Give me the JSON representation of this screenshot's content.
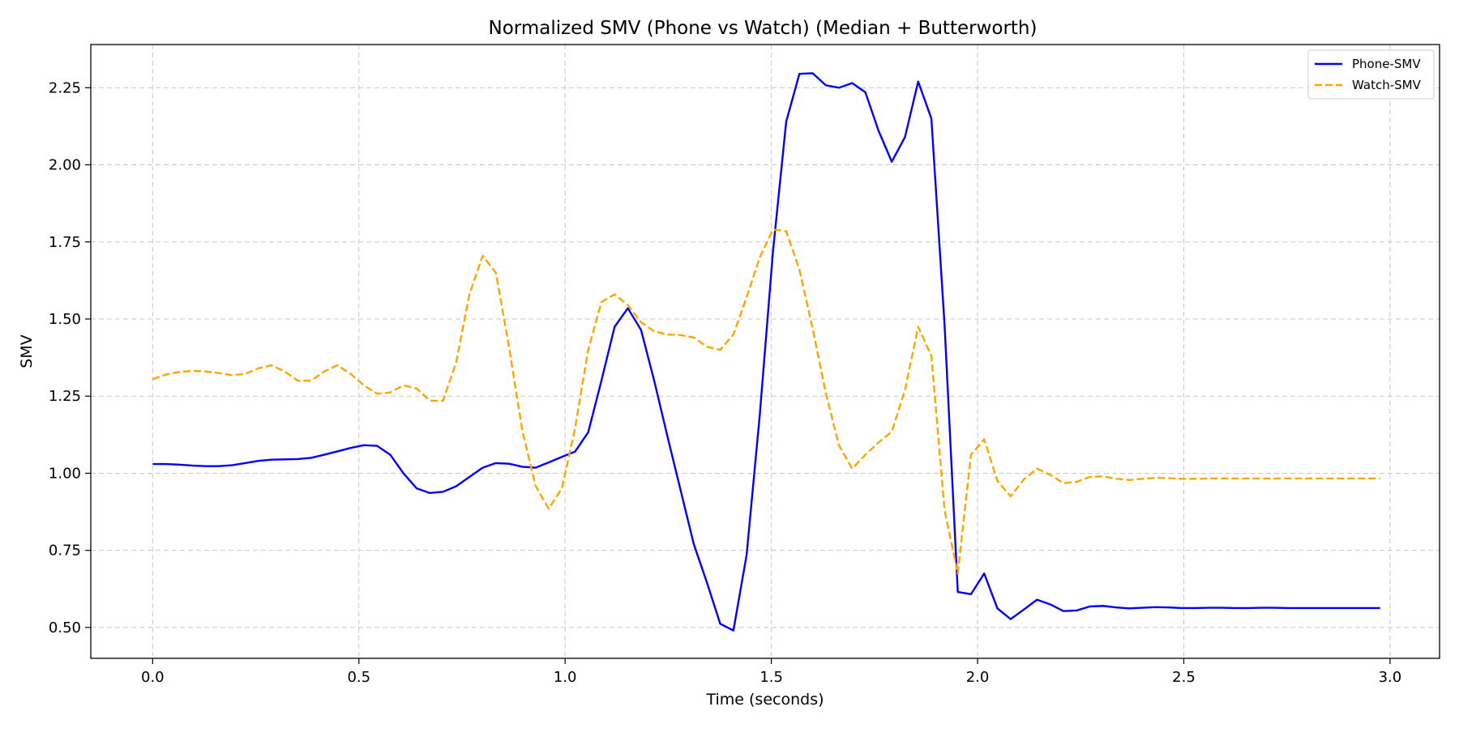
{
  "chart_data": {
    "type": "line",
    "title": "Normalized SMV (Phone vs Watch) (Median + Butterworth)",
    "xlabel": "Time (seconds)",
    "ylabel": "SMV",
    "xlim": [
      -0.15,
      3.12
    ],
    "ylim": [
      0.4,
      2.39
    ],
    "xticks": [
      0.0,
      0.5,
      1.0,
      1.5,
      2.0,
      2.5,
      3.0
    ],
    "xtick_labels": [
      "0.0",
      "0.5",
      "1.0",
      "1.5",
      "2.0",
      "2.5",
      "3.0"
    ],
    "yticks": [
      0.5,
      0.75,
      1.0,
      1.25,
      1.5,
      1.75,
      2.0,
      2.25
    ],
    "ytick_labels": [
      "0.50",
      "0.75",
      "1.00",
      "1.25",
      "1.50",
      "1.75",
      "2.00",
      "2.25"
    ],
    "grid": true,
    "legend_position": "top-right",
    "series": [
      {
        "name": "Phone-SMV",
        "color": "#0000ff",
        "style": "solid",
        "x": [
          0.0,
          0.032,
          0.064,
          0.096,
          0.128,
          0.16,
          0.192,
          0.224,
          0.256,
          0.288,
          0.32,
          0.352,
          0.384,
          0.416,
          0.448,
          0.48,
          0.512,
          0.544,
          0.576,
          0.608,
          0.64,
          0.672,
          0.704,
          0.736,
          0.768,
          0.8,
          0.832,
          0.864,
          0.896,
          0.928,
          0.96,
          0.992,
          1.024,
          1.056,
          1.088,
          1.12,
          1.152,
          1.184,
          1.216,
          1.248,
          1.28,
          1.312,
          1.344,
          1.376,
          1.408,
          1.44,
          1.472,
          1.504,
          1.536,
          1.568,
          1.6,
          1.632,
          1.664,
          1.696,
          1.728,
          1.76,
          1.792,
          1.824,
          1.856,
          1.888,
          1.92,
          1.952,
          1.984,
          2.016,
          2.048,
          2.08,
          2.112,
          2.144,
          2.176,
          2.208,
          2.24,
          2.272,
          2.304,
          2.336,
          2.368,
          2.4,
          2.432,
          2.464,
          2.496,
          2.528,
          2.56,
          2.592,
          2.624,
          2.656,
          2.688,
          2.72,
          2.752,
          2.784,
          2.816,
          2.848,
          2.88,
          2.912,
          2.944,
          2.976
        ],
        "y": [
          1.03,
          1.03,
          1.028,
          1.025,
          1.023,
          1.023,
          1.026,
          1.033,
          1.04,
          1.044,
          1.045,
          1.046,
          1.05,
          1.06,
          1.071,
          1.082,
          1.091,
          1.089,
          1.06,
          1.0,
          0.951,
          0.936,
          0.94,
          0.958,
          0.988,
          1.018,
          1.033,
          1.031,
          1.021,
          1.018,
          1.035,
          1.053,
          1.07,
          1.133,
          1.3,
          1.475,
          1.535,
          1.465,
          1.3,
          1.12,
          0.945,
          0.77,
          0.645,
          0.512,
          0.49,
          0.735,
          1.19,
          1.72,
          2.14,
          2.295,
          2.297,
          2.258,
          2.25,
          2.265,
          2.235,
          2.11,
          2.01,
          2.09,
          2.27,
          2.15,
          1.48,
          0.615,
          0.608,
          0.675,
          0.562,
          0.527,
          0.558,
          0.59,
          0.575,
          0.553,
          0.555,
          0.568,
          0.57,
          0.565,
          0.562,
          0.564,
          0.566,
          0.565,
          0.563,
          0.563,
          0.564,
          0.564,
          0.563,
          0.563,
          0.564,
          0.564,
          0.563,
          0.563,
          0.563,
          0.563,
          0.563,
          0.563,
          0.563,
          0.563
        ]
      },
      {
        "name": "Watch-SMV",
        "color": "#ffa500",
        "style": "dashed",
        "x": [
          0.0,
          0.032,
          0.064,
          0.096,
          0.128,
          0.16,
          0.192,
          0.224,
          0.256,
          0.288,
          0.32,
          0.352,
          0.384,
          0.416,
          0.448,
          0.48,
          0.512,
          0.544,
          0.576,
          0.608,
          0.64,
          0.672,
          0.704,
          0.736,
          0.768,
          0.8,
          0.832,
          0.864,
          0.896,
          0.928,
          0.96,
          0.992,
          1.024,
          1.056,
          1.088,
          1.12,
          1.152,
          1.184,
          1.216,
          1.248,
          1.28,
          1.312,
          1.344,
          1.376,
          1.408,
          1.44,
          1.472,
          1.504,
          1.536,
          1.568,
          1.6,
          1.632,
          1.664,
          1.696,
          1.728,
          1.76,
          1.792,
          1.824,
          1.856,
          1.888,
          1.92,
          1.952,
          1.984,
          2.016,
          2.048,
          2.08,
          2.112,
          2.144,
          2.176,
          2.208,
          2.24,
          2.272,
          2.304,
          2.336,
          2.368,
          2.4,
          2.432,
          2.464,
          2.496,
          2.528,
          2.56,
          2.592,
          2.624,
          2.656,
          2.688,
          2.72,
          2.752,
          2.784,
          2.816,
          2.848,
          2.88,
          2.912,
          2.944,
          2.976
        ],
        "y": [
          1.305,
          1.32,
          1.328,
          1.332,
          1.33,
          1.325,
          1.318,
          1.322,
          1.34,
          1.35,
          1.33,
          1.3,
          1.3,
          1.33,
          1.35,
          1.322,
          1.285,
          1.258,
          1.262,
          1.285,
          1.275,
          1.235,
          1.235,
          1.36,
          1.58,
          1.705,
          1.65,
          1.41,
          1.14,
          0.96,
          0.885,
          0.95,
          1.145,
          1.4,
          1.555,
          1.58,
          1.545,
          1.49,
          1.46,
          1.45,
          1.448,
          1.44,
          1.41,
          1.4,
          1.45,
          1.57,
          1.7,
          1.79,
          1.785,
          1.66,
          1.47,
          1.26,
          1.09,
          1.015,
          1.06,
          1.1,
          1.135,
          1.27,
          1.475,
          1.38,
          0.88,
          0.675,
          1.06,
          1.11,
          0.975,
          0.925,
          0.98,
          1.015,
          0.995,
          0.968,
          0.972,
          0.988,
          0.99,
          0.982,
          0.978,
          0.982,
          0.985,
          0.984,
          0.982,
          0.982,
          0.983,
          0.983,
          0.983,
          0.983,
          0.983,
          0.983,
          0.983,
          0.983,
          0.983,
          0.983,
          0.983,
          0.983,
          0.983,
          0.983
        ]
      }
    ]
  }
}
